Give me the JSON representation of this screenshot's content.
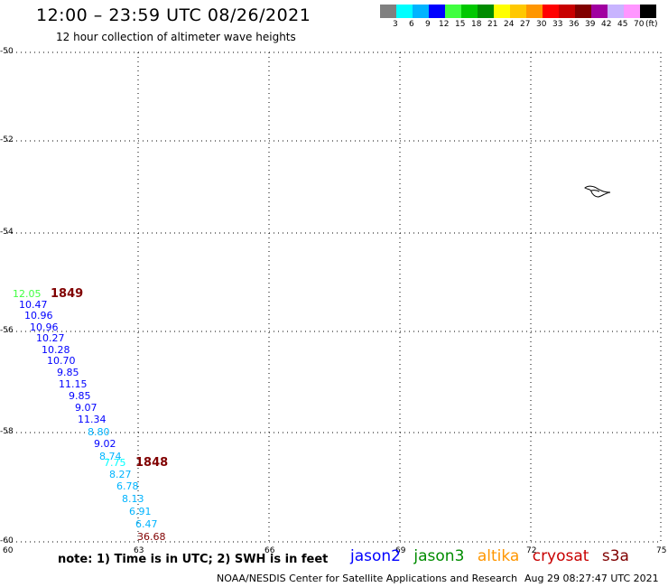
{
  "header": {
    "title": "12:00 – 23:59 UTC 08/26/2021",
    "subtitle": "12 hour collection of altimeter wave heights"
  },
  "scale": {
    "colors": [
      "#808080",
      "#00ffff",
      "#00b4ff",
      "#0000ff",
      "#40ff40",
      "#00c800",
      "#008c00",
      "#ffff00",
      "#ffc800",
      "#ff9600",
      "#ff0000",
      "#c80000",
      "#800000",
      "#a000a0",
      "#c8b4ff",
      "#ff96ff",
      "#000000"
    ],
    "labels": [
      "3",
      "6",
      "9",
      "12",
      "15",
      "18",
      "21",
      "24",
      "27",
      "30",
      "33",
      "36",
      "39",
      "42",
      "45",
      "70",
      "(ft)"
    ]
  },
  "axes": {
    "y_ticks": [
      "-50",
      "-52",
      "-54",
      "-56",
      "-58",
      "-60"
    ],
    "x_ticks": [
      "60",
      "63",
      "66",
      "69",
      "72",
      "75"
    ]
  },
  "track": {
    "time_labels": [
      "1849",
      "1848"
    ],
    "observations": [
      {
        "value": "12.05",
        "color": "#40ff40"
      },
      {
        "value": "10.47",
        "color": "#0000ff"
      },
      {
        "value": "10.96",
        "color": "#0000ff"
      },
      {
        "value": "10.96",
        "color": "#0000ff"
      },
      {
        "value": "10.27",
        "color": "#0000ff"
      },
      {
        "value": "10.28",
        "color": "#0000ff"
      },
      {
        "value": "10.70",
        "color": "#0000ff"
      },
      {
        "value": "9.85",
        "color": "#0000ff"
      },
      {
        "value": "11.15",
        "color": "#0000ff"
      },
      {
        "value": "9.85",
        "color": "#0000ff"
      },
      {
        "value": "9.07",
        "color": "#0000ff"
      },
      {
        "value": "11.34",
        "color": "#0000ff"
      },
      {
        "value": "8.80",
        "color": "#00b4ff"
      },
      {
        "value": "9.02",
        "color": "#0000ff"
      },
      {
        "value": "8.74",
        "color": "#00b4ff"
      },
      {
        "value": "7.75",
        "color": "#00ffff"
      },
      {
        "value": "8.27",
        "color": "#00b4ff"
      },
      {
        "value": "6.78",
        "color": "#00b4ff"
      },
      {
        "value": "8.13",
        "color": "#00b4ff"
      },
      {
        "value": "6.91",
        "color": "#00b4ff"
      },
      {
        "value": "6.47",
        "color": "#00b4ff"
      },
      {
        "value": "36.68",
        "color": "#800000"
      }
    ]
  },
  "footer": {
    "note": "note: 1) Time is in UTC; 2) SWH is in feet",
    "satellites": [
      {
        "name": "jason2",
        "color": "#0000ff"
      },
      {
        "name": "jason3",
        "color": "#008c00"
      },
      {
        "name": "altika",
        "color": "#ff9600"
      },
      {
        "name": "cryosat",
        "color": "#c80000"
      },
      {
        "name": "s3a",
        "color": "#800000"
      }
    ],
    "credit": "NOAA/NESDIS Center for Satellite Applications and Research",
    "timestamp": "Aug 29 08:27:47 UTC 2021"
  }
}
